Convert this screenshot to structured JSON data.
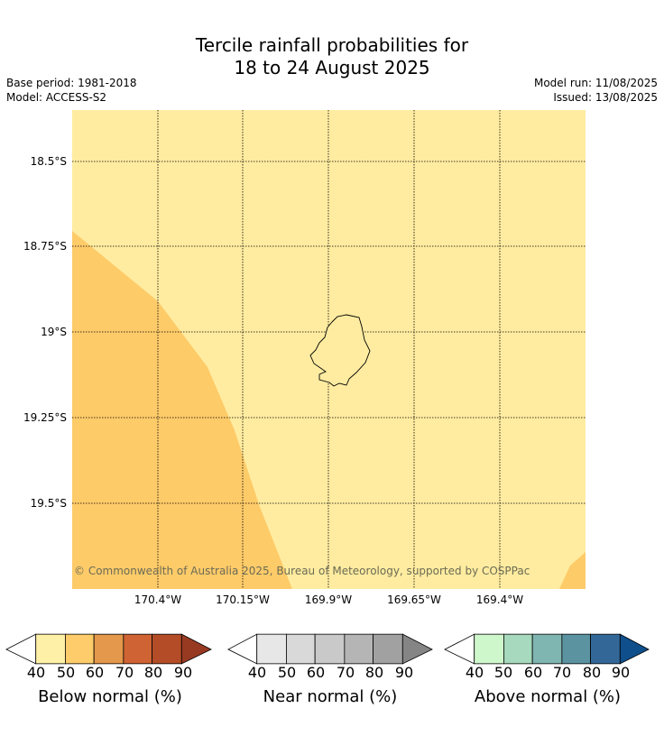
{
  "title_line1": "Tercile rainfall probabilities for",
  "title_line2": "18 to 24 August 2025",
  "meta_left": {
    "base_period": "Base period: 1981-2018",
    "model": "Model: ACCESS-S2"
  },
  "meta_right": {
    "model_run": "Model run: 11/08/2025",
    "issued": "Issued: 13/08/2025"
  },
  "map": {
    "region": "Niue",
    "background_category": "Below normal 40-50%",
    "background_color": "#ffeca0",
    "higher_category_color": "#fecb69",
    "coastline_color": "#000000",
    "gridlines": "dotted"
  },
  "lat_labels": [
    "18.5°S",
    "18.75°S",
    "19°S",
    "19.25°S",
    "19.5°S"
  ],
  "lon_labels": [
    "170.4°W",
    "170.15°W",
    "169.9°W",
    "169.65°W",
    "169.4°W"
  ],
  "copyright": "© Commonwealth of Australia 2025, Bureau of Meteorology, supported by COSPPac",
  "colorbars": [
    {
      "title": "Below normal (%)",
      "ticks": [
        "40",
        "50",
        "60",
        "70",
        "80",
        "90"
      ],
      "colors": [
        "#fff0a8",
        "#fecc6a",
        "#e3984b",
        "#cf6333",
        "#b34c27",
        "#983a22"
      ]
    },
    {
      "title": "Near normal (%)",
      "ticks": [
        "40",
        "50",
        "60",
        "70",
        "80",
        "90"
      ],
      "colors": [
        "#e7e7e7",
        "#d9d9d9",
        "#c9c9c9",
        "#b5b5b5",
        "#a1a1a1",
        "#858585"
      ]
    },
    {
      "title": "Above normal (%)",
      "ticks": [
        "40",
        "50",
        "60",
        "70",
        "80",
        "90"
      ],
      "colors": [
        "#cff7cc",
        "#a6d9bd",
        "#80b6b2",
        "#5b93a1",
        "#336797",
        "#0f4f8c"
      ]
    }
  ]
}
